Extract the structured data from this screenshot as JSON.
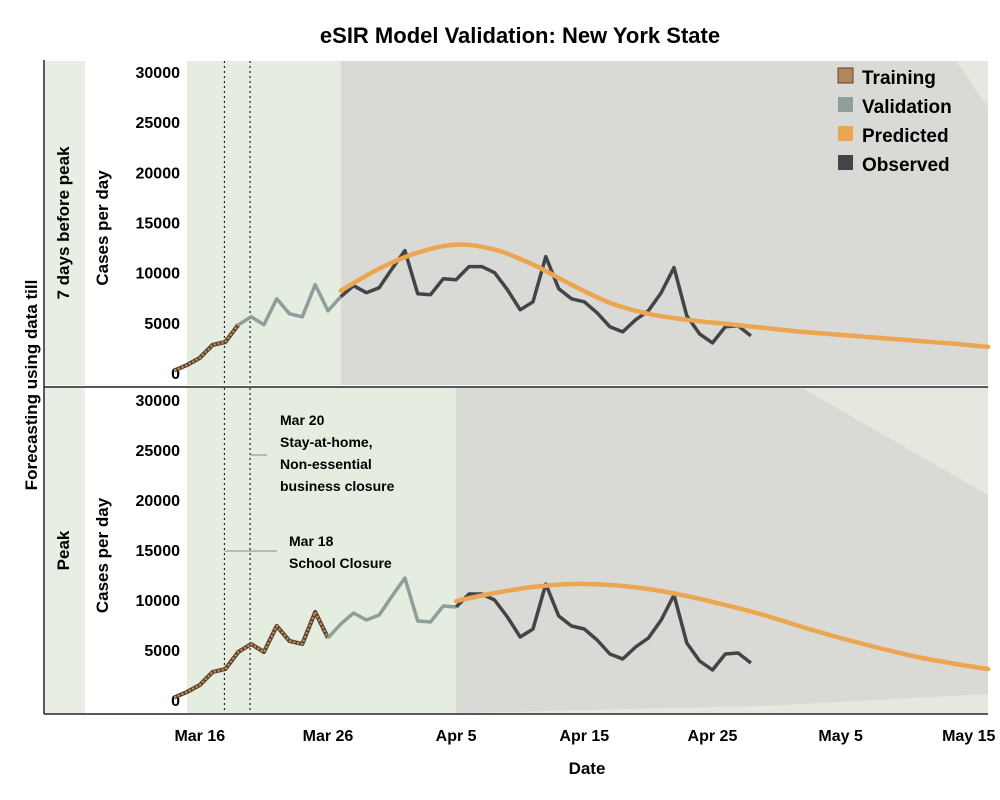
{
  "title": "eSIR Model Validation: New York State",
  "outer_ylabel": "Forecasting using data till",
  "colors": {
    "training": "#8a6a48",
    "validation": "#8e9e9a",
    "predicted": "#eca651",
    "observed": "#414549",
    "training_bg": "#e5ece0",
    "forecast_bg": "#d9d9d5",
    "ci_bg": "#e4e8df",
    "strip_bg": "#e9eee4"
  },
  "legend": [
    {
      "label": "Training",
      "key": "training"
    },
    {
      "label": "Validation",
      "key": "validation"
    },
    {
      "label": "Predicted",
      "key": "predicted"
    },
    {
      "label": "Observed",
      "key": "observed"
    }
  ],
  "chart_data": {
    "type": "line",
    "xlabel": "Date",
    "ylabel": "Cases per day",
    "x_ticks": [
      {
        "label": "Mar 16",
        "day": 16
      },
      {
        "label": "Mar 26",
        "day": 26
      },
      {
        "label": "Apr 5",
        "day": 36
      },
      {
        "label": "Apr 15",
        "day": 46
      },
      {
        "label": "Apr 25",
        "day": 56
      },
      {
        "label": "May 5",
        "day": 66
      },
      {
        "label": "May 15",
        "day": 76
      }
    ],
    "x_range": [
      15,
      77.5
    ],
    "y_ticks": [
      0,
      5000,
      10000,
      15000,
      20000,
      25000,
      30000
    ],
    "ylim": [
      0,
      30000
    ],
    "observed_start_day": 14,
    "observed": [
      250,
      800,
      1500,
      2800,
      3100,
      4800,
      5600,
      4800,
      7400,
      5900,
      5600,
      8800,
      6200,
      7600,
      8700,
      8000,
      8500,
      10400,
      12200,
      7900,
      7800,
      9400,
      9300,
      10600,
      10600,
      10000,
      8300,
      6300,
      7100,
      11600,
      8400,
      7400,
      7100,
      6000,
      4600,
      4100,
      5300,
      6200,
      8000,
      10500,
      5700,
      3900,
      3000,
      4600,
      4700,
      3700
    ],
    "annotations": [
      {
        "label": "Mar 18",
        "day": 18,
        "lines": [
          "Mar 18",
          "School Closure"
        ]
      },
      {
        "label": "Mar 20",
        "day": 20,
        "lines": [
          "Mar 20",
          "Stay-at-home,",
          "Non-essential",
          "business closure"
        ]
      }
    ],
    "panels": [
      {
        "row_label": "7 days before peak",
        "training_end_day": 19,
        "validation_end_day": 27,
        "predicted": {
          "x": [
            27,
            30,
            33,
            36,
            39,
            42,
            45,
            48,
            51,
            54,
            57,
            60,
            63,
            66,
            69,
            72,
            75,
            77.5
          ],
          "y": [
            8200,
            10400,
            12000,
            12800,
            12300,
            10800,
            8800,
            7000,
            5900,
            5300,
            4900,
            4500,
            4100,
            3800,
            3500,
            3200,
            2900,
            2600
          ]
        }
      },
      {
        "row_label": "Peak",
        "training_end_day": 26,
        "validation_end_day": 36,
        "predicted": {
          "x": [
            36,
            39,
            42,
            45,
            48,
            51,
            54,
            57,
            60,
            63,
            66,
            69,
            72,
            75,
            77.5
          ],
          "y": [
            9900,
            10700,
            11300,
            11600,
            11500,
            11100,
            10400,
            9500,
            8500,
            7300,
            6200,
            5200,
            4300,
            3600,
            3100
          ]
        }
      }
    ]
  }
}
